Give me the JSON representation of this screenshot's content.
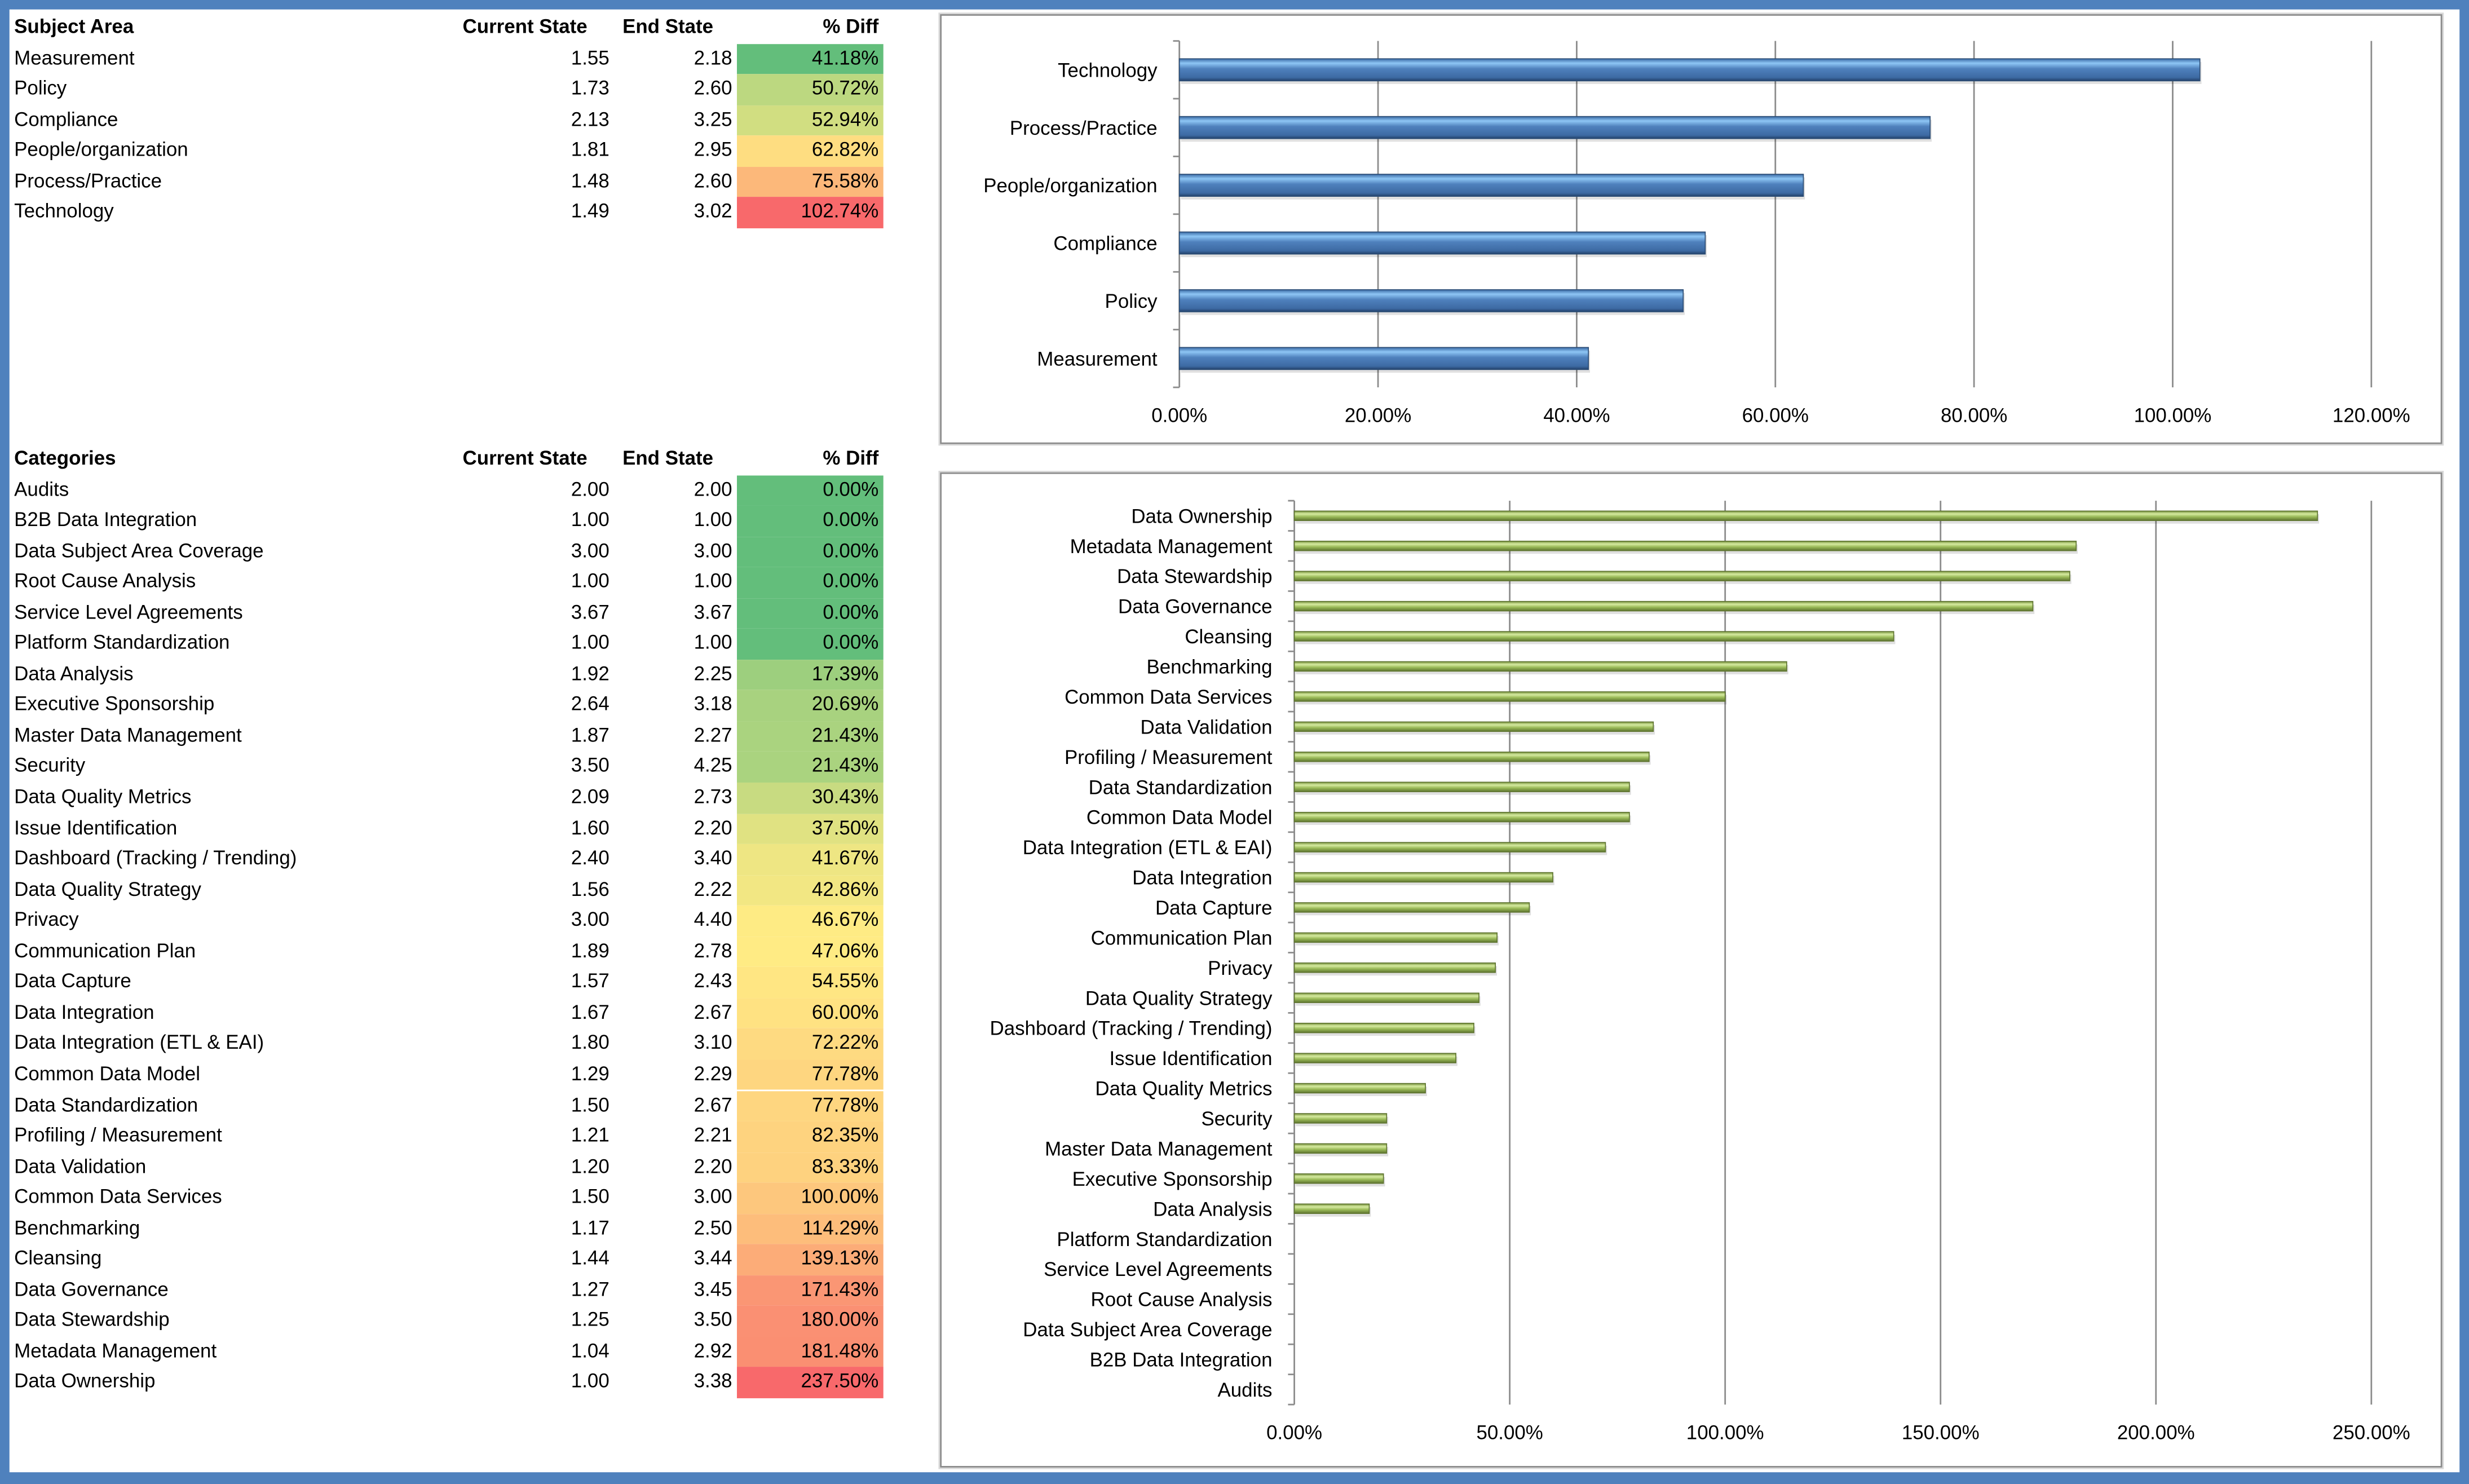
{
  "subject_table": {
    "headers": [
      "Subject Area",
      "Current State",
      "End State",
      "% Diff"
    ],
    "rows": [
      [
        "Measurement",
        "1.55",
        "2.18",
        "41.18%"
      ],
      [
        "Policy",
        "1.73",
        "2.60",
        "50.72%"
      ],
      [
        "Compliance",
        "2.13",
        "3.25",
        "52.94%"
      ],
      [
        "People/organization",
        "1.81",
        "2.95",
        "62.82%"
      ],
      [
        "Process/Practice",
        "1.48",
        "2.60",
        "75.58%"
      ],
      [
        "Technology",
        "1.49",
        "3.02",
        "102.74%"
      ]
    ]
  },
  "category_table": {
    "headers": [
      "Categories",
      "Current State",
      "End State",
      "% Diff"
    ],
    "rows": [
      [
        "Audits",
        "2.00",
        "2.00",
        "0.00%"
      ],
      [
        "B2B Data Integration",
        "1.00",
        "1.00",
        "0.00%"
      ],
      [
        "Data Subject Area Coverage",
        "3.00",
        "3.00",
        "0.00%"
      ],
      [
        "Root Cause Analysis",
        "1.00",
        "1.00",
        "0.00%"
      ],
      [
        "Service Level Agreements",
        "3.67",
        "3.67",
        "0.00%"
      ],
      [
        "Platform Standardization",
        "1.00",
        "1.00",
        "0.00%"
      ],
      [
        "Data Analysis",
        "1.92",
        "2.25",
        "17.39%"
      ],
      [
        "Executive Sponsorship",
        "2.64",
        "3.18",
        "20.69%"
      ],
      [
        "Master Data Management",
        "1.87",
        "2.27",
        "21.43%"
      ],
      [
        "Security",
        "3.50",
        "4.25",
        "21.43%"
      ],
      [
        "Data Quality Metrics",
        "2.09",
        "2.73",
        "30.43%"
      ],
      [
        "Issue Identification",
        "1.60",
        "2.20",
        "37.50%"
      ],
      [
        "Dashboard (Tracking / Trending)",
        "2.40",
        "3.40",
        "41.67%"
      ],
      [
        "Data Quality Strategy",
        "1.56",
        "2.22",
        "42.86%"
      ],
      [
        "Privacy",
        "3.00",
        "4.40",
        "46.67%"
      ],
      [
        "Communication Plan",
        "1.89",
        "2.78",
        "47.06%"
      ],
      [
        "Data Capture",
        "1.57",
        "2.43",
        "54.55%"
      ],
      [
        "Data Integration",
        "1.67",
        "2.67",
        "60.00%"
      ],
      [
        "Data Integration (ETL & EAI)",
        "1.80",
        "3.10",
        "72.22%"
      ],
      [
        "Common Data Model",
        "1.29",
        "2.29",
        "77.78%"
      ],
      [
        "Data Standardization",
        "1.50",
        "2.67",
        "77.78%"
      ],
      [
        "Profiling / Measurement",
        "1.21",
        "2.21",
        "82.35%"
      ],
      [
        "Data Validation",
        "1.20",
        "2.20",
        "83.33%"
      ],
      [
        "Common Data Services",
        "1.50",
        "3.00",
        "100.00%"
      ],
      [
        "Benchmarking",
        "1.17",
        "2.50",
        "114.29%"
      ],
      [
        "Cleansing",
        "1.44",
        "3.44",
        "139.13%"
      ],
      [
        "Data Governance",
        "1.27",
        "3.45",
        "171.43%"
      ],
      [
        "Data Stewardship",
        "1.25",
        "3.50",
        "180.00%"
      ],
      [
        "Metadata Management",
        "1.04",
        "2.92",
        "181.48%"
      ],
      [
        "Data Ownership",
        "1.00",
        "3.38",
        "237.50%"
      ]
    ]
  },
  "colors": {
    "border": "#4F81BD",
    "scale_low": "#63BE7B",
    "scale_mid": "#FFEB84",
    "scale_high": "#F8696B",
    "bar_blue": "#4F81BD",
    "bar_green": "#9BBB59"
  },
  "chart_data": [
    {
      "type": "bar",
      "orientation": "horizontal",
      "categories": [
        "Technology",
        "Process/Practice",
        "People/organization",
        "Compliance",
        "Policy",
        "Measurement"
      ],
      "values": [
        102.74,
        75.58,
        62.82,
        52.94,
        50.72,
        41.18
      ],
      "xlim": [
        0,
        120
      ],
      "ticks": [
        "0.00%",
        "20.00%",
        "40.00%",
        "60.00%",
        "80.00%",
        "100.00%",
        "120.00%"
      ],
      "grid": true,
      "title": "",
      "xlabel": "",
      "ylabel": ""
    },
    {
      "type": "bar",
      "orientation": "horizontal",
      "categories": [
        "Data Ownership",
        "Metadata Management",
        "Data Stewardship",
        "Data Governance",
        "Cleansing",
        "Benchmarking",
        "Common Data Services",
        "Data Validation",
        "Profiling / Measurement",
        "Data Standardization",
        "Common Data Model",
        "Data Integration (ETL & EAI)",
        "Data Integration",
        "Data Capture",
        "Communication Plan",
        "Privacy",
        "Data Quality Strategy",
        "Dashboard (Tracking / Trending)",
        "Issue Identification",
        "Data Quality Metrics",
        "Security",
        "Master Data Management",
        "Executive Sponsorship",
        "Data Analysis",
        "Platform Standardization",
        "Service Level Agreements",
        "Root Cause Analysis",
        "Data Subject Area Coverage",
        "B2B Data Integration",
        "Audits"
      ],
      "values": [
        237.5,
        181.48,
        180.0,
        171.43,
        139.13,
        114.29,
        100.0,
        83.33,
        82.35,
        77.78,
        77.78,
        72.22,
        60.0,
        54.55,
        47.06,
        46.67,
        42.86,
        41.67,
        37.5,
        30.43,
        21.43,
        21.43,
        20.69,
        17.39,
        0,
        0,
        0,
        0,
        0,
        0
      ],
      "xlim": [
        0,
        250
      ],
      "ticks": [
        "0.00%",
        "50.00%",
        "100.00%",
        "150.00%",
        "200.00%",
        "250.00%"
      ],
      "grid": true,
      "title": "",
      "xlabel": "",
      "ylabel": ""
    }
  ]
}
